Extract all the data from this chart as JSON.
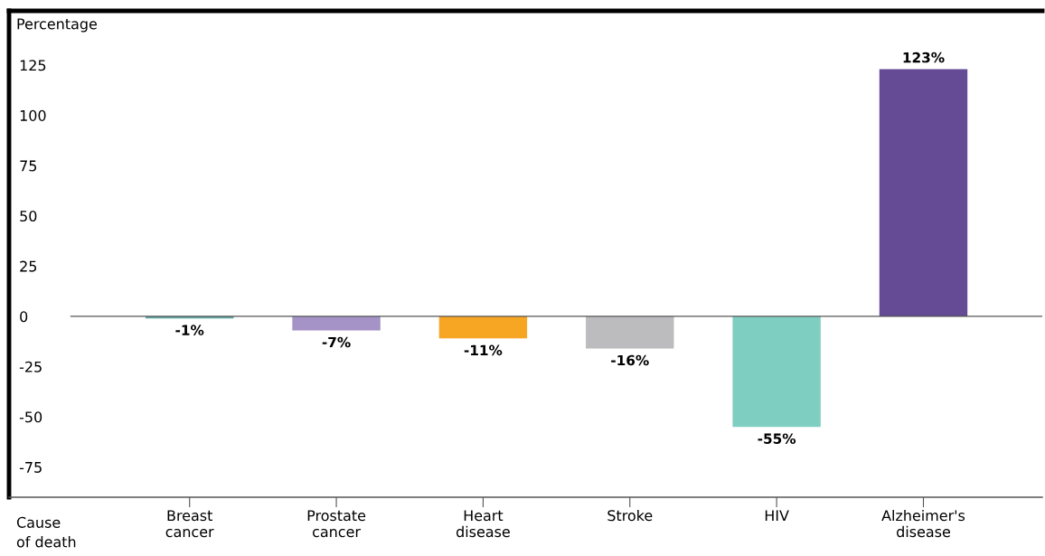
{
  "chart_data": {
    "type": "bar",
    "ylabel": "Percentage",
    "xlabel": "Cause\nof death",
    "categories": [
      "Breast\ncancer",
      "Prostate\ncancer",
      "Heart\ndisease",
      "Stroke",
      "HIV",
      "Alzheimer's\ndisease"
    ],
    "values": [
      -1,
      -7,
      -11,
      -16,
      -55,
      123
    ],
    "colors": [
      "#5fa8a2",
      "#a592c6",
      "#f6a623",
      "#bcbcbe",
      "#7ecfc1",
      "#654b95"
    ],
    "value_labels": [
      "-1%",
      "-7%",
      "-11%",
      "-16%",
      "-55%",
      "123%"
    ],
    "ylim": [
      -90,
      152
    ],
    "yticks": [
      {
        "value": 125,
        "label": "125"
      },
      {
        "value": 100,
        "label": "100"
      },
      {
        "value": 75,
        "label": "75"
      },
      {
        "value": 50,
        "label": "50"
      },
      {
        "value": 25,
        "label": "25"
      },
      {
        "value": 0,
        "label": "0"
      },
      {
        "value": -25,
        "label": "-25"
      },
      {
        "value": -50,
        "label": "-50"
      },
      {
        "value": -75,
        "label": "-75"
      }
    ],
    "ref_lines": [
      {
        "axis": "y",
        "value": 0,
        "color": "#555555"
      }
    ],
    "grid": false,
    "legend": false
  }
}
